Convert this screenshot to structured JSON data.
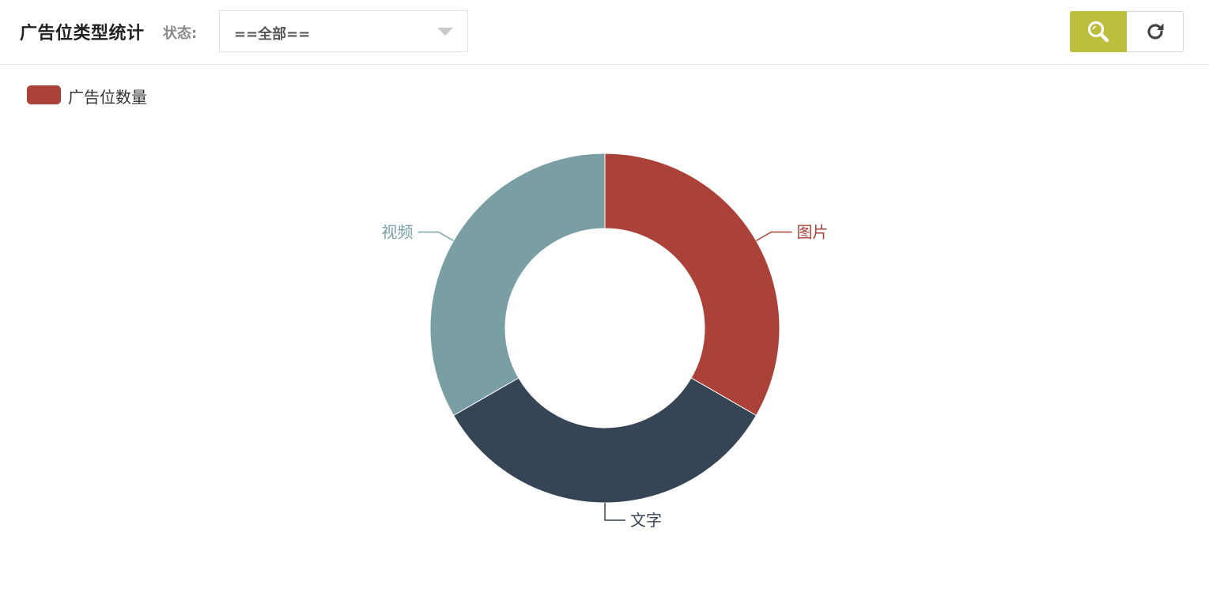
{
  "header": {
    "title": "广告位类型统计",
    "status_label": "状态:",
    "status_value": "==全部==",
    "search_icon": "search-icon",
    "refresh_icon": "refresh-icon",
    "accent_color": "#bcbf3e"
  },
  "chart_data": {
    "type": "pie",
    "donut": true,
    "legend": {
      "position": "top-left",
      "items": [
        "广告位数量"
      ]
    },
    "series": [
      {
        "name": "广告位数量",
        "data": [
          {
            "label": "图片",
            "value": 1,
            "color": "#ab4239"
          },
          {
            "label": "文字",
            "value": 1,
            "color": "#364555"
          },
          {
            "label": "视频",
            "value": 1,
            "color": "#799fa5"
          }
        ]
      }
    ],
    "legend_color": "#ab4239"
  }
}
